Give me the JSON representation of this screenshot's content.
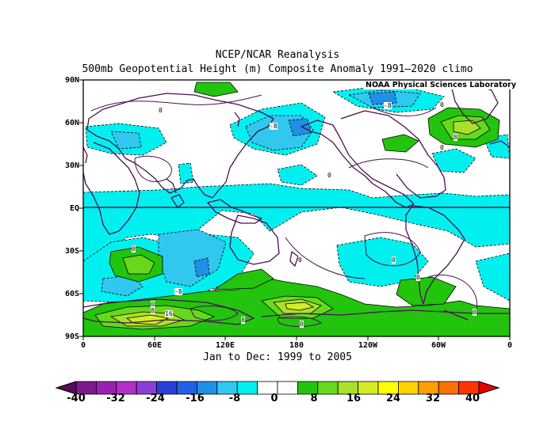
{
  "title_line1": "NCEP/NCAR Reanalysis",
  "title_line2": "500mb Geopotential Height (m) Composite Anomaly 1991–2020 climo",
  "credit": "NOAA Physical Sciences Laboratory",
  "date_range": "Jan to Dec: 1999 to 2005",
  "lat_labels": [
    "90N",
    "60N",
    "30N",
    "EQ",
    "30S",
    "60S",
    "90S"
  ],
  "lon_labels": [
    "0",
    "60E",
    "120E",
    "180",
    "120W",
    "60W",
    "0"
  ],
  "contour_labels": [
    "0",
    "0",
    "-8",
    "-8",
    "0",
    "8",
    "0",
    "0",
    "0",
    "-8",
    "0",
    "0",
    "0",
    "8",
    "16",
    "8",
    "0",
    "0"
  ],
  "colorbar": {
    "colors": [
      "#5a0a5a",
      "#7d1a8c",
      "#9b1fb0",
      "#b22fc8",
      "#8c3fd6",
      "#2b3fd9",
      "#2360e8",
      "#1e90e6",
      "#31c8f0",
      "#00f0f0",
      "#ffffff",
      "#ffffff",
      "#22c40e",
      "#66d91c",
      "#a8e02a",
      "#d4ec28",
      "#ffff00",
      "#ffd200",
      "#ffa000",
      "#ff7000",
      "#ff3500",
      "#e60000"
    ],
    "labels": [
      "-40",
      "-32",
      "-24",
      "-16",
      "-8",
      "0",
      "8",
      "16",
      "24",
      "32",
      "40"
    ]
  }
}
